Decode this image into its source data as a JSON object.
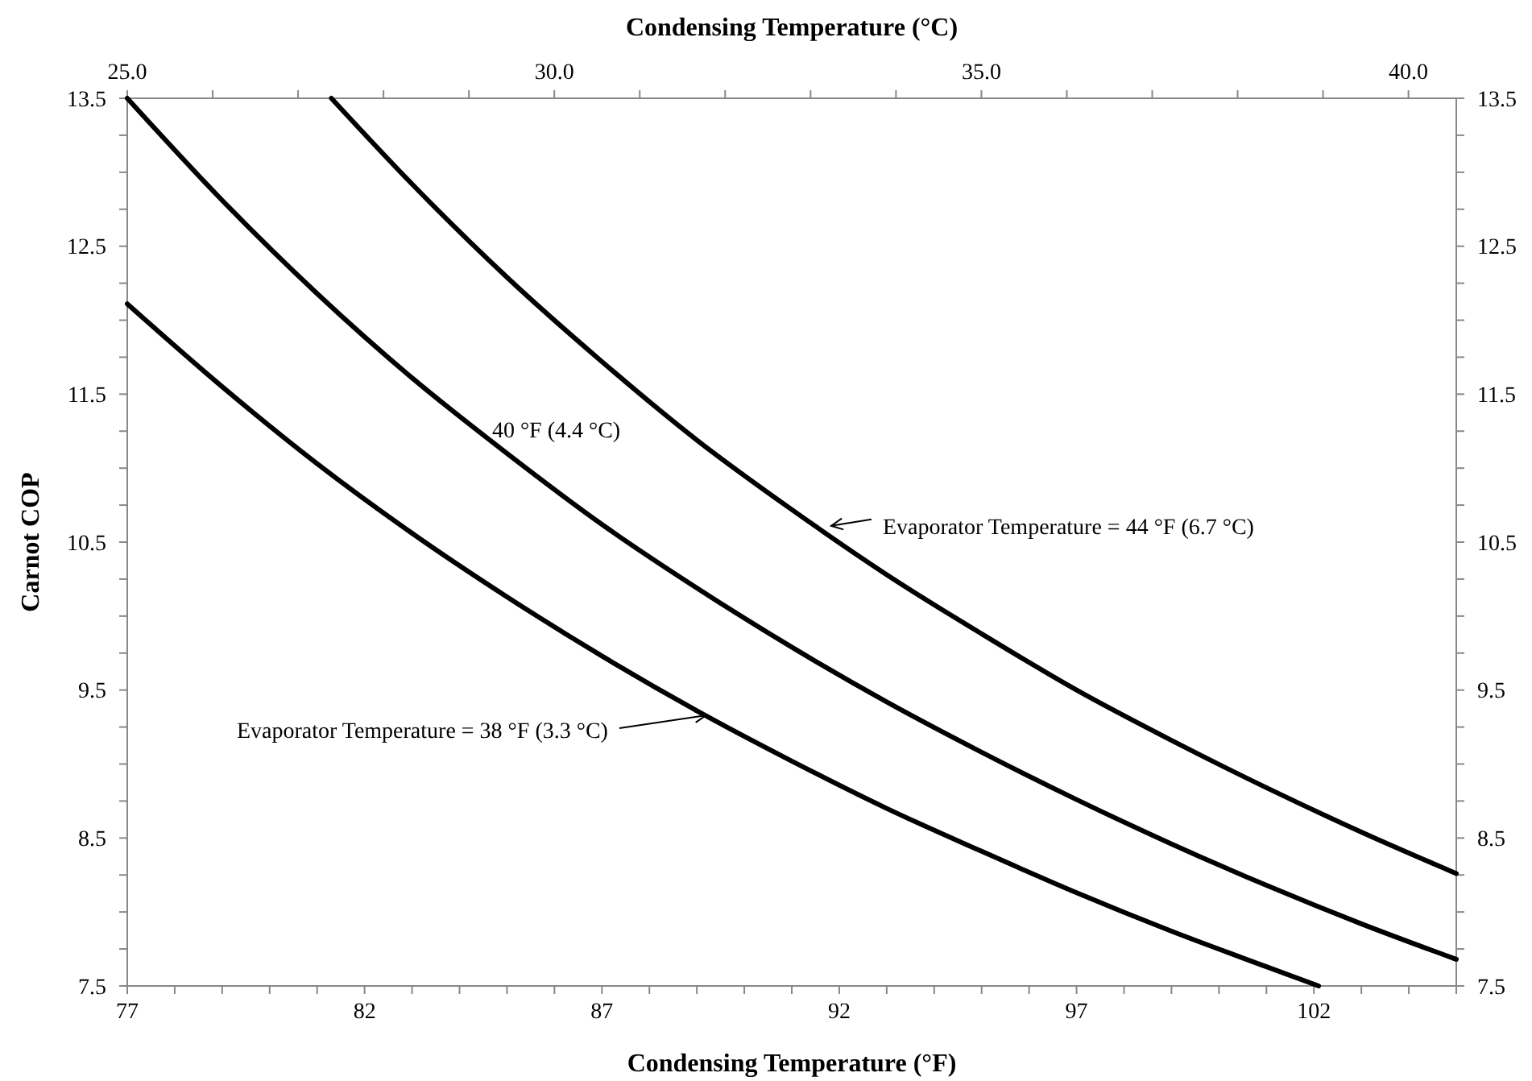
{
  "chart_data": {
    "type": "line",
    "xlabel": "Condensing Temperature (°F)",
    "x2label": "Condensing Temperature (°C)",
    "ylabel": "Carnot COP",
    "xlim": [
      77,
      105
    ],
    "xticks": [
      77,
      {
        "value": 78,
        "label": null
      },
      {
        "value": 79,
        "label": null
      },
      {
        "value": 80,
        "label": null
      },
      {
        "value": 81,
        "label": null
      },
      82,
      {
        "value": 83,
        "label": null
      },
      {
        "value": 84,
        "label": null
      },
      {
        "value": 85,
        "label": null
      },
      {
        "value": 86,
        "label": null
      },
      87,
      {
        "value": 88,
        "label": null
      },
      {
        "value": 89,
        "label": null
      },
      {
        "value": 90,
        "label": null
      },
      {
        "value": 91,
        "label": null
      },
      92,
      {
        "value": 93,
        "label": null
      },
      {
        "value": 94,
        "label": null
      },
      {
        "value": 95,
        "label": null
      },
      {
        "value": 96,
        "label": null
      },
      97,
      {
        "value": 98,
        "label": null
      },
      {
        "value": 99,
        "label": null
      },
      {
        "value": 100,
        "label": null
      },
      {
        "value": 101,
        "label": null
      },
      102,
      {
        "value": 103,
        "label": null
      },
      {
        "value": 104,
        "label": null
      },
      {
        "value": 105,
        "label": null
      }
    ],
    "x2lim": [
      25,
      40.56
    ],
    "x2ticks": [
      {
        "value": 25,
        "label": "25.0"
      },
      {
        "value": 26,
        "label": null
      },
      {
        "value": 27,
        "label": null
      },
      {
        "value": 28,
        "label": null
      },
      {
        "value": 29,
        "label": null
      },
      {
        "value": 30,
        "label": "30.0"
      },
      {
        "value": 31,
        "label": null
      },
      {
        "value": 32,
        "label": null
      },
      {
        "value": 33,
        "label": null
      },
      {
        "value": 34,
        "label": null
      },
      {
        "value": 35,
        "label": "35.0"
      },
      {
        "value": 36,
        "label": null
      },
      {
        "value": 37,
        "label": null
      },
      {
        "value": 38,
        "label": null
      },
      {
        "value": 39,
        "label": null
      },
      {
        "value": 40,
        "label": "40.0"
      }
    ],
    "ylim": [
      7.5,
      13.5
    ],
    "yticks": [
      7.5,
      {
        "value": 7.75,
        "label": null
      },
      {
        "value": 8,
        "label": null
      },
      {
        "value": 8.25,
        "label": null
      },
      8.5,
      {
        "value": 8.75,
        "label": null
      },
      {
        "value": 9,
        "label": null
      },
      {
        "value": 9.25,
        "label": null
      },
      9.5,
      {
        "value": 9.75,
        "label": null
      },
      {
        "value": 10,
        "label": null
      },
      {
        "value": 10.25,
        "label": null
      },
      10.5,
      {
        "value": 10.75,
        "label": null
      },
      {
        "value": 11,
        "label": null
      },
      {
        "value": 11.25,
        "label": null
      },
      11.5,
      {
        "value": 11.75,
        "label": null
      },
      {
        "value": 12,
        "label": null
      },
      {
        "value": 12.25,
        "label": null
      },
      12.5,
      {
        "value": 12.75,
        "label": null
      },
      {
        "value": 13,
        "label": null
      },
      {
        "value": 13.25,
        "label": null
      },
      13.5
    ],
    "y2lim": [
      7.5,
      13.5
    ],
    "y2ticks": [
      7.5,
      {
        "value": 7.75,
        "label": null
      },
      {
        "value": 8,
        "label": null
      },
      {
        "value": 8.25,
        "label": null
      },
      8.5,
      {
        "value": 8.75,
        "label": null
      },
      {
        "value": 9,
        "label": null
      },
      {
        "value": 9.25,
        "label": null
      },
      9.5,
      {
        "value": 9.75,
        "label": null
      },
      {
        "value": 10,
        "label": null
      },
      {
        "value": 10.25,
        "label": null
      },
      10.5,
      {
        "value": 10.75,
        "label": null
      },
      {
        "value": 11,
        "label": null
      },
      {
        "value": 11.25,
        "label": null
      },
      11.5,
      {
        "value": 11.75,
        "label": null
      },
      {
        "value": 12,
        "label": null
      },
      {
        "value": 12.25,
        "label": null
      },
      12.5,
      {
        "value": 12.75,
        "label": null
      },
      {
        "value": 13,
        "label": null
      },
      {
        "value": 13.25,
        "label": null
      },
      13.5
    ],
    "grid": false,
    "marker": "none",
    "line_style": "solid",
    "series": [
      {
        "color": "#000000",
        "x": [
          77,
          79,
          81,
          83,
          85,
          87,
          89,
          91,
          93,
          95,
          97,
          99,
          101,
          102.1
        ],
        "values": [
          12.11,
          11.55,
          11.03,
          10.56,
          10.13,
          9.73,
          9.36,
          9.02,
          8.7,
          8.41,
          8.13,
          7.87,
          7.63,
          7.5
        ]
      },
      {
        "color": "#000000",
        "x": [
          77,
          79,
          81,
          83,
          85,
          87,
          89,
          91,
          93,
          95,
          97,
          99,
          101,
          103,
          105
        ],
        "values": [
          13.5,
          12.81,
          12.18,
          11.61,
          11.1,
          10.62,
          10.19,
          9.79,
          9.42,
          9.08,
          8.76,
          8.46,
          8.18,
          7.92,
          7.68
        ]
      },
      {
        "color": "#000000",
        "x": [
          81.3,
          83,
          85,
          87,
          89,
          91,
          93,
          95,
          97,
          99,
          101,
          103,
          105
        ],
        "values": [
          13.5,
          12.92,
          12.29,
          11.72,
          11.19,
          10.72,
          10.28,
          9.88,
          9.5,
          9.16,
          8.84,
          8.54,
          8.26
        ]
      }
    ],
    "annotations": [
      {
        "text": "40 °F (4.4 °C)",
        "x": 85.5,
        "y": 10.97
      },
      {
        "text": "Evaporator Temperature = 44 °F (6.7 °C)",
        "x": 91.83,
        "y": 10.61
      },
      {
        "text": "Evaporator Temperature = 38 °F (3.3 °C)",
        "x": 89.2,
        "y": 9.33
      }
    ]
  }
}
